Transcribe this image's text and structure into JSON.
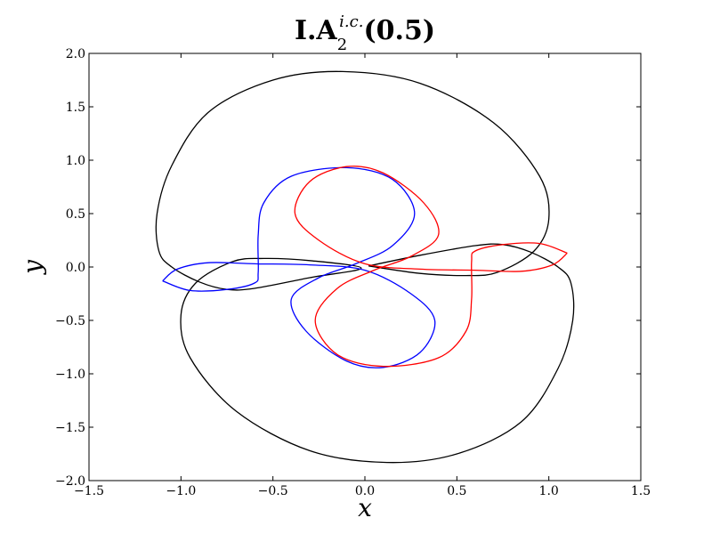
{
  "chart_data": {
    "type": "line",
    "title": {
      "main": "I.A",
      "superscript": "i.c.",
      "subscript": "2",
      "suffix": "(0.5)"
    },
    "xlabel": "x",
    "ylabel": "y",
    "xlim": [
      -1.5,
      1.5
    ],
    "ylim": [
      -2.0,
      2.0
    ],
    "xticks": [
      -1.5,
      -1.0,
      -0.5,
      0.0,
      0.5,
      1.0,
      1.5
    ],
    "yticks": [
      -2.0,
      -1.5,
      -1.0,
      -0.5,
      0.0,
      0.5,
      1.0,
      1.5,
      2.0
    ],
    "xtick_labels": [
      "−1.5",
      "−1.0",
      "−0.5",
      "0.0",
      "0.5",
      "1.0",
      "1.5"
    ],
    "ytick_labels": [
      "−2.0",
      "−1.5",
      "−1.0",
      "−0.5",
      "0.0",
      "0.5",
      "1.0",
      "1.5",
      "2.0"
    ],
    "grid": false,
    "legend": "none",
    "series": [
      {
        "color": "#000000",
        "points": [
          [
            0.02,
            0.01
          ],
          [
            0.3,
            0.11
          ],
          [
            0.6,
            0.2
          ],
          [
            0.75,
            0.21
          ],
          [
            0.9,
            0.14
          ],
          [
            1.05,
            0.0
          ],
          [
            1.12,
            -0.15
          ],
          [
            1.13,
            -0.5
          ],
          [
            1.05,
            -0.95
          ],
          [
            0.85,
            -1.45
          ],
          [
            0.5,
            -1.75
          ],
          [
            0.12,
            -1.83
          ],
          [
            -0.3,
            -1.72
          ],
          [
            -0.7,
            -1.35
          ],
          [
            -0.95,
            -0.85
          ],
          [
            -1.0,
            -0.45
          ],
          [
            -0.92,
            -0.15
          ],
          [
            -0.72,
            0.05
          ],
          [
            -0.55,
            0.08
          ],
          [
            -0.3,
            0.06
          ],
          [
            -0.02,
            -0.01
          ],
          [
            -0.3,
            -0.1
          ],
          [
            -0.6,
            -0.2
          ],
          [
            -0.75,
            -0.21
          ],
          [
            -0.9,
            -0.14
          ],
          [
            -1.05,
            0.0
          ],
          [
            -1.12,
            0.15
          ],
          [
            -1.13,
            0.5
          ],
          [
            -1.05,
            0.95
          ],
          [
            -0.85,
            1.45
          ],
          [
            -0.5,
            1.75
          ],
          [
            -0.12,
            1.83
          ],
          [
            0.3,
            1.72
          ],
          [
            0.7,
            1.35
          ],
          [
            0.95,
            0.85
          ],
          [
            1.0,
            0.45
          ],
          [
            0.92,
            0.15
          ],
          [
            0.72,
            -0.05
          ],
          [
            0.55,
            -0.08
          ],
          [
            0.3,
            -0.06
          ],
          [
            0.02,
            0.01
          ]
        ]
      },
      {
        "color": "#0000ff",
        "points": [
          [
            -1.1,
            -0.13
          ],
          [
            -0.95,
            -0.22
          ],
          [
            -0.75,
            -0.21
          ],
          [
            -0.6,
            -0.15
          ],
          [
            -0.58,
            -0.05
          ],
          [
            -0.58,
            0.3
          ],
          [
            -0.55,
            0.6
          ],
          [
            -0.4,
            0.85
          ],
          [
            -0.1,
            0.93
          ],
          [
            0.15,
            0.82
          ],
          [
            0.27,
            0.5
          ],
          [
            0.15,
            0.2
          ],
          [
            -0.05,
            0.03
          ],
          [
            -0.25,
            -0.1
          ],
          [
            -0.4,
            -0.3
          ],
          [
            -0.32,
            -0.6
          ],
          [
            -0.1,
            -0.88
          ],
          [
            0.1,
            -0.94
          ],
          [
            0.3,
            -0.8
          ],
          [
            0.38,
            -0.5
          ],
          [
            0.25,
            -0.25
          ],
          [
            0.0,
            -0.03
          ],
          [
            -0.3,
            0.02
          ],
          [
            -0.6,
            0.03
          ],
          [
            -0.85,
            0.04
          ],
          [
            -1.02,
            -0.02
          ],
          [
            -1.1,
            -0.13
          ]
        ]
      },
      {
        "color": "#ff0000",
        "points": [
          [
            1.1,
            0.13
          ],
          [
            0.95,
            0.22
          ],
          [
            0.75,
            0.21
          ],
          [
            0.6,
            0.15
          ],
          [
            0.58,
            0.05
          ],
          [
            0.58,
            -0.3
          ],
          [
            0.55,
            -0.6
          ],
          [
            0.4,
            -0.85
          ],
          [
            0.1,
            -0.93
          ],
          [
            -0.15,
            -0.82
          ],
          [
            -0.27,
            -0.5
          ],
          [
            -0.15,
            -0.2
          ],
          [
            0.05,
            -0.03
          ],
          [
            0.25,
            0.1
          ],
          [
            0.4,
            0.3
          ],
          [
            0.32,
            0.6
          ],
          [
            0.1,
            0.88
          ],
          [
            -0.1,
            0.94
          ],
          [
            -0.3,
            0.8
          ],
          [
            -0.38,
            0.5
          ],
          [
            -0.25,
            0.25
          ],
          [
            0.0,
            0.03
          ],
          [
            0.3,
            -0.02
          ],
          [
            0.6,
            -0.03
          ],
          [
            0.85,
            -0.04
          ],
          [
            1.02,
            0.02
          ],
          [
            1.1,
            0.13
          ]
        ]
      }
    ]
  }
}
